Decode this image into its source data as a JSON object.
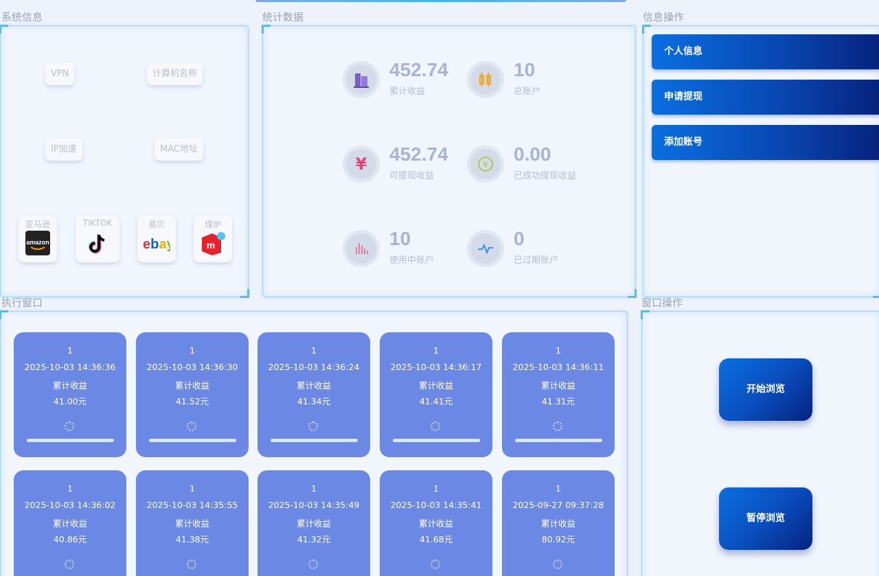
{
  "sections": {
    "system_info": "系统信息",
    "stats": "统计数据",
    "info_ops": "信息操作",
    "exec_window": "执行窗口",
    "window_ops": "窗口操作"
  },
  "system": {
    "vpn": "VPN",
    "computer_name": "计算机名称",
    "ip_accel": "IP加速",
    "mac": "MAC地址",
    "apps": [
      {
        "label": "亚马逊",
        "icon": "amazon-logo-icon"
      },
      {
        "label": "TIKTOK",
        "icon": "tiktok-logo-icon"
      },
      {
        "label": "易贝",
        "icon": "ebay-logo-icon"
      },
      {
        "label": "煤炉",
        "icon": "mercari-logo-icon"
      }
    ]
  },
  "stats": [
    {
      "value": "452.74",
      "label": "累计收益",
      "icon": "building-icon"
    },
    {
      "value": "10",
      "label": "总账户",
      "icon": "candlestick-icon"
    },
    {
      "value": "452.74",
      "label": "可提现收益",
      "icon": "yen-icon"
    },
    {
      "value": "0.00",
      "label": "已成功提现收益",
      "icon": "coin-icon"
    },
    {
      "value": "10",
      "label": "使用中账户",
      "icon": "bar-chart-icon"
    },
    {
      "value": "0",
      "label": "已过期账户",
      "icon": "pulse-icon"
    }
  ],
  "info_buttons": [
    "个人信息",
    "申请提现",
    "添加账号"
  ],
  "cards": [
    {
      "id": "1",
      "time": "2025-10-03 14:36:36",
      "label": "累计收益",
      "amount": "41.00元"
    },
    {
      "id": "1",
      "time": "2025-10-03 14:36:30",
      "label": "累计收益",
      "amount": "41.52元"
    },
    {
      "id": "1",
      "time": "2025-10-03 14:36:24",
      "label": "累计收益",
      "amount": "41.34元"
    },
    {
      "id": "1",
      "time": "2025-10-03 14:36:17",
      "label": "累计收益",
      "amount": "41.41元"
    },
    {
      "id": "1",
      "time": "2025-10-03 14:36:11",
      "label": "累计收益",
      "amount": "41.31元"
    },
    {
      "id": "1",
      "time": "2025-10-03 14:36:02",
      "label": "累计收益",
      "amount": "40.86元"
    },
    {
      "id": "1",
      "time": "2025-10-03 14:35:55",
      "label": "累计收益",
      "amount": "41.38元"
    },
    {
      "id": "1",
      "time": "2025-10-03 14:35:49",
      "label": "累计收益",
      "amount": "41.32元"
    },
    {
      "id": "1",
      "time": "2025-10-03 14:35:41",
      "label": "累计收益",
      "amount": "41.68元"
    },
    {
      "id": "1",
      "time": "2025-09-27 09:37:28",
      "label": "累计收益",
      "amount": "80.92元"
    }
  ],
  "window_buttons": {
    "start": "开始浏览",
    "pause": "暂停浏览"
  },
  "colors": {
    "card": "#6b89e4",
    "accent": "#0a4fbf"
  }
}
